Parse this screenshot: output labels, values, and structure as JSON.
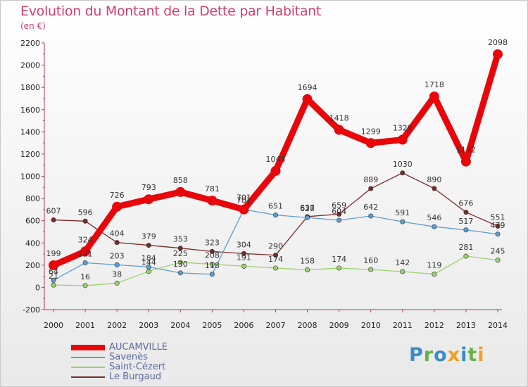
{
  "title": "Evolution du Montant de la Dette par Habitant",
  "unit": "(en €)",
  "logo": "Proxiti",
  "colors": {
    "title": "#d0406e",
    "AUCAMVILLE": "#e8060b",
    "Savenès": "#5b9fd0",
    "Saint-Cézert": "#9ad26c",
    "Le Burgaud": "#7b2a2a"
  },
  "chart_data": {
    "type": "line",
    "title": "Evolution du Montant de la Dette par Habitant",
    "subtitle": "(en €)",
    "xlabel": "",
    "ylabel": "",
    "ylim": [
      -200,
      2200
    ],
    "yticks": [
      -200,
      0,
      200,
      400,
      600,
      800,
      1000,
      1200,
      1400,
      1600,
      1800,
      2000,
      2200
    ],
    "x": [
      "2000",
      "2001",
      "2002",
      "2003",
      "2004",
      "2005",
      "2006",
      "2007",
      "2008",
      "2009",
      "2010",
      "2011",
      "2012",
      "2013",
      "2014"
    ],
    "legend_position": "bottom-left",
    "grid": false,
    "series": [
      {
        "name": "AUCAMVILLE",
        "color": "#e8060b",
        "values": [
          199,
          324,
          726,
          793,
          858,
          781,
          701,
          1048,
          1694,
          1418,
          1299,
          1329,
          1718,
          1132,
          2098
        ]
      },
      {
        "name": "Savenès",
        "color": "#5b9fd0",
        "values": [
          64,
          221,
          203,
          184,
          130,
          118,
          701,
          651,
          628,
          604,
          642,
          591,
          546,
          517,
          479
        ]
      },
      {
        "name": "Saint-Cézert",
        "color": "#9ad26c",
        "values": [
          21,
          16,
          38,
          144,
          225,
          208,
          191,
          174,
          158,
          174,
          160,
          142,
          119,
          281,
          245
        ]
      },
      {
        "name": "Le Burgaud",
        "color": "#7b2a2a",
        "values": [
          607,
          596,
          404,
          379,
          353,
          323,
          304,
          290,
          637,
          659,
          889,
          1030,
          890,
          676,
          551
        ]
      }
    ]
  }
}
